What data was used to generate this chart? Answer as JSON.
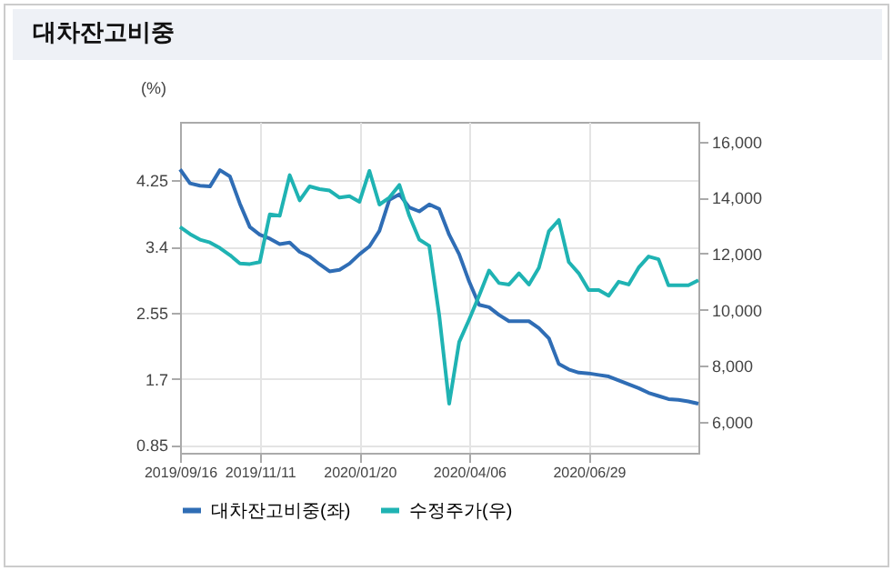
{
  "chart_data": {
    "type": "line",
    "title": "대차잔고비중",
    "ylabel": "(%)",
    "x": [
      "2019-09-16",
      "2019-09-23",
      "2019-09-30",
      "2019-10-07",
      "2019-10-14",
      "2019-10-21",
      "2019-10-28",
      "2019-11-04",
      "2019-11-11",
      "2019-11-18",
      "2019-11-25",
      "2019-12-02",
      "2019-12-09",
      "2019-12-16",
      "2019-12-23",
      "2019-12-30",
      "2020-01-06",
      "2020-01-13",
      "2020-01-20",
      "2020-01-27",
      "2020-02-03",
      "2020-02-10",
      "2020-02-17",
      "2020-02-24",
      "2020-03-02",
      "2020-03-09",
      "2020-03-16",
      "2020-03-23",
      "2020-03-30",
      "2020-04-06",
      "2020-04-13",
      "2020-04-20",
      "2020-04-27",
      "2020-05-04",
      "2020-05-11",
      "2020-05-18",
      "2020-05-25",
      "2020-06-01",
      "2020-06-08",
      "2020-06-15",
      "2020-06-22",
      "2020-06-29",
      "2020-07-06",
      "2020-07-13",
      "2020-07-20",
      "2020-07-27",
      "2020-08-03",
      "2020-08-10",
      "2020-08-17",
      "2020-08-24",
      "2020-08-31",
      "2020-09-07",
      "2020-09-14"
    ],
    "series": [
      {
        "name": "대차잔고비중(좌)",
        "color": "#2f6db5",
        "values": [
          4.39,
          4.21,
          4.18,
          4.17,
          4.38,
          4.3,
          3.95,
          3.65,
          3.55,
          3.5,
          3.43,
          3.45,
          3.33,
          3.27,
          3.17,
          3.08,
          3.1,
          3.18,
          3.3,
          3.4,
          3.6,
          4.0,
          4.07,
          3.9,
          3.85,
          3.94,
          3.88,
          3.55,
          3.3,
          2.95,
          2.65,
          2.62,
          2.52,
          2.44,
          2.44,
          2.44,
          2.35,
          2.22,
          1.89,
          1.82,
          1.78,
          1.77,
          1.75,
          1.73,
          1.68,
          1.63,
          1.58,
          1.52,
          1.48,
          1.44,
          1.43,
          1.41,
          1.38
        ]
      },
      {
        "name": "수정주가(우)",
        "color": "#1fb3b3",
        "axis": "y2",
        "values": [
          12950,
          12700,
          12500,
          12400,
          12200,
          11950,
          11650,
          11630,
          11700,
          13400,
          13350,
          14800,
          13900,
          14400,
          14300,
          14250,
          14000,
          14050,
          13850,
          14950,
          13750,
          14000,
          14450,
          13350,
          12500,
          12280,
          9800,
          6650,
          8850,
          9650,
          10500,
          11400,
          10950,
          10900,
          11300,
          10900,
          11500,
          12800,
          13200,
          11700,
          11300,
          10700,
          10700,
          10500,
          11000,
          10900,
          11500,
          11900,
          11800,
          10870,
          10870,
          10870,
          11050
        ]
      }
    ],
    "xlim": [
      "2019-09-16",
      "2020-09-14"
    ],
    "xticks": [
      {
        "value": "2019-09-16",
        "label": "2019/09/16"
      },
      {
        "value": "2019-11-11",
        "label": "2019/11/11"
      },
      {
        "value": "2020-01-20",
        "label": "2020/01/20"
      },
      {
        "value": "2020-04-06",
        "label": "2020/04/06"
      },
      {
        "value": "2020-06-29",
        "label": "2020/06/29"
      }
    ],
    "ylim": [
      0.75,
      5.0
    ],
    "yticks": [
      0.85,
      1.7,
      2.55,
      3.4,
      4.25
    ],
    "y2lim": [
      4900,
      16700
    ],
    "y2ticks": [
      {
        "value": 6000,
        "label": "6,000"
      },
      {
        "value": 8000,
        "label": "8,000"
      },
      {
        "value": 10000,
        "label": "10,000"
      },
      {
        "value": 12000,
        "label": "12,000"
      },
      {
        "value": 14000,
        "label": "14,000"
      },
      {
        "value": 16000,
        "label": "16,000"
      }
    ],
    "grid": true,
    "legend": "bottom"
  }
}
